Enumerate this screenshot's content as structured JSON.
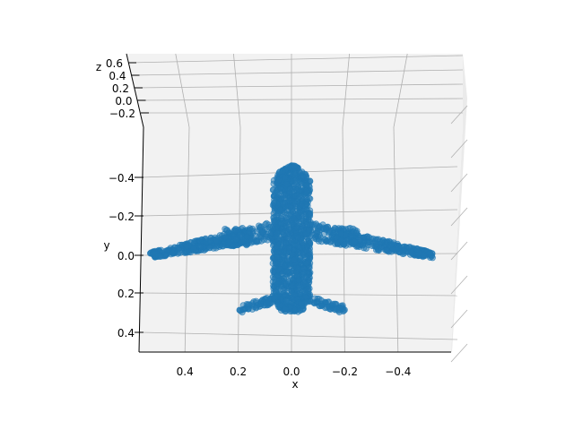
{
  "chart_data": {
    "type": "scatter",
    "projection": "3d",
    "title": "",
    "xlabel": "x",
    "ylabel": "y",
    "zlabel": "z",
    "x_ticks": [
      "0.4",
      "0.2",
      "0.0",
      "−0.2",
      "−0.4"
    ],
    "y_ticks": [
      "−0.4",
      "−0.2",
      "0.0",
      "0.2",
      "0.4"
    ],
    "z_ticks": [
      "0.6",
      "0.4",
      "0.2",
      "0.0",
      "−0.2"
    ],
    "xlim": [
      0.55,
      -0.55
    ],
    "ylim": [
      -0.5,
      0.5
    ],
    "zlim": [
      -0.3,
      0.6
    ],
    "grid": true,
    "marker_color": "#1f77b4",
    "marker_alpha": 0.5,
    "shape": "airplane point cloud (top view)",
    "components": {
      "fuselage": {
        "x_center": 0.0,
        "half_width": 0.07,
        "y_range": [
          -0.46,
          0.29
        ],
        "count": 1300
      },
      "wings": {
        "root_y": -0.13,
        "root_half_span": 0.1,
        "tip_x": 0.53,
        "tip_y": 0.0,
        "chord_root": 0.05,
        "chord_tip": 0.015,
        "count_per_side": 380
      },
      "tailplane": {
        "root_y": 0.22,
        "tip_x": 0.2,
        "tip_y": 0.28,
        "count_per_side": 70
      }
    }
  }
}
